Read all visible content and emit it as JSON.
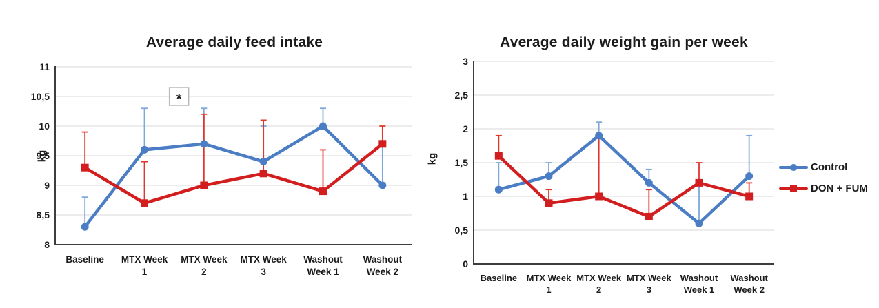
{
  "colors": {
    "control": "#4a7dc4",
    "control_error": "#7fa8da",
    "don_fum": "#d21e1e",
    "don_fum_error": "#e0372c",
    "grid": "#d8d8d8",
    "axis": "#3d3d3d",
    "text": "#1b1b1b",
    "annotation_border": "#b9b9b9"
  },
  "legend": {
    "items": [
      {
        "label": "Control",
        "series": "control",
        "marker": "circle"
      },
      {
        "label": "DON + FUM",
        "series": "don_fum",
        "marker": "square"
      }
    ]
  },
  "chart_data": [
    {
      "type": "line",
      "title": "Average daily feed intake",
      "ylabel": "kg",
      "ylim": [
        8,
        11
      ],
      "grid": true,
      "categories": [
        [
          "Baseline"
        ],
        [
          "MTX Week",
          "1"
        ],
        [
          "MTX Week",
          "2"
        ],
        [
          "MTX Week",
          "3"
        ],
        [
          "Washout",
          "Week 1"
        ],
        [
          "Washout",
          "Week 2"
        ]
      ],
      "yticks": [
        {
          "value": 8,
          "label": "8"
        },
        {
          "value": 8.5,
          "label": "8,5"
        },
        {
          "value": 9,
          "label": "9"
        },
        {
          "value": 9.5,
          "label": "9,5"
        },
        {
          "value": 10,
          "label": "10"
        },
        {
          "value": 10.5,
          "label": "10,5"
        },
        {
          "value": 11,
          "label": "11"
        }
      ],
      "series": [
        {
          "name": "Control",
          "color_key": "control",
          "error_color_key": "control_error",
          "marker": "circle",
          "values": [
            8.3,
            9.6,
            9.7,
            9.4,
            10.0,
            9.0
          ],
          "upper_error": [
            8.8,
            10.3,
            10.3,
            10.0,
            10.3,
            9.7
          ]
        },
        {
          "name": "DON + FUM",
          "color_key": "don_fum",
          "error_color_key": "don_fum_error",
          "marker": "square",
          "values": [
            9.3,
            8.7,
            9.0,
            9.2,
            8.9,
            9.7
          ],
          "upper_error": [
            9.9,
            9.4,
            10.2,
            10.1,
            9.6,
            10.0
          ]
        }
      ],
      "annotation": {
        "text": "*",
        "between": [
          1,
          2
        ],
        "value": 10.5
      }
    },
    {
      "type": "line",
      "title": "Average daily weight gain per week",
      "ylabel": "kg",
      "ylim": [
        0,
        3
      ],
      "grid": true,
      "categories": [
        [
          "Baseline"
        ],
        [
          "MTX Week",
          "1"
        ],
        [
          "MTX Week",
          "2"
        ],
        [
          "MTX Week",
          "3"
        ],
        [
          "Washout",
          "Week 1"
        ],
        [
          "Washout",
          "Week 2"
        ]
      ],
      "yticks": [
        {
          "value": 0,
          "label": "0"
        },
        {
          "value": 0.5,
          "label": "0,5"
        },
        {
          "value": 1,
          "label": "1"
        },
        {
          "value": 1.5,
          "label": "1,5"
        },
        {
          "value": 2,
          "label": "2"
        },
        {
          "value": 2.5,
          "label": "2,5"
        },
        {
          "value": 3,
          "label": "3"
        }
      ],
      "series": [
        {
          "name": "Control",
          "color_key": "control",
          "error_color_key": "control_error",
          "marker": "circle",
          "values": [
            1.1,
            1.3,
            1.9,
            1.2,
            0.6,
            1.3
          ],
          "upper_error": [
            1.5,
            1.5,
            2.1,
            1.4,
            1.2,
            1.9
          ]
        },
        {
          "name": "DON + FUM",
          "color_key": "don_fum",
          "error_color_key": "don_fum_error",
          "marker": "square",
          "values": [
            1.6,
            0.9,
            1.0,
            0.7,
            1.2,
            1.0
          ],
          "upper_error": [
            1.9,
            1.1,
            1.9,
            1.1,
            1.5,
            1.2
          ]
        }
      ],
      "annotation": null
    }
  ]
}
